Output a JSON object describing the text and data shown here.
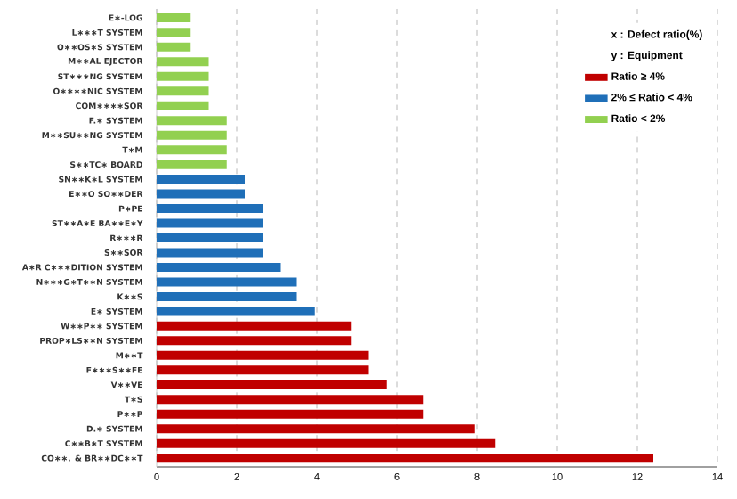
{
  "chart_data": {
    "type": "bar",
    "orientation": "horizontal",
    "grid": "x",
    "legend": "top right",
    "annotations": [
      "x : Defect ratio(%)",
      "y : Equipment"
    ],
    "categories": [
      "E∗-LOG",
      "L∗∗∗T SYSTEM",
      "O∗∗OS∗S SYSTEM",
      "M∗∗AL EJECTOR",
      "ST∗∗∗NG SYSTEM",
      "O∗∗∗∗NIC SYSTEM",
      "COM∗∗∗∗SOR",
      "F.∗ SYSTEM",
      "M∗∗SU∗∗NG SYSTEM",
      "T∗M",
      "S∗∗TC∗ BOARD",
      "SN∗∗K∗L SYSTEM",
      "E∗∗O SO∗∗DER",
      "P∗PE",
      "ST∗∗A∗E BA∗∗E∗Y",
      "R∗∗∗R",
      "S∗∗SOR",
      "A∗R C∗∗∗DITION SYSTEM",
      "N∗∗∗G∗T∗∗N SYSTEM",
      "K∗∗S",
      "E∗ SYSTEM",
      "W∗∗P∗∗ SYSTEM",
      "PROP∗LS∗∗N SYSTEM",
      "M∗∗T",
      "F∗∗∗S∗∗FE",
      "V∗∗VE",
      "T∗S",
      "P∗∗P",
      "D.∗ SYSTEM",
      "C∗∗B∗T SYSTEM",
      "CO∗∗. & BR∗∗DC∗∗T"
    ],
    "series": [
      {
        "name": "Ratio ≥ 4%",
        "color": "#c00000",
        "values": [
          null,
          null,
          null,
          null,
          null,
          null,
          null,
          null,
          null,
          null,
          null,
          null,
          null,
          null,
          null,
          null,
          null,
          null,
          null,
          null,
          null,
          4.85,
          4.85,
          5.3,
          5.3,
          5.75,
          6.65,
          6.65,
          7.95,
          8.45,
          12.4
        ]
      },
      {
        "name": "2% ≤ Ratio < 4%",
        "color": "#1f6fb8",
        "values": [
          null,
          null,
          null,
          null,
          null,
          null,
          null,
          null,
          null,
          null,
          null,
          2.2,
          2.2,
          2.65,
          2.65,
          2.65,
          2.65,
          3.1,
          3.5,
          3.5,
          3.95,
          null,
          null,
          null,
          null,
          null,
          null,
          null,
          null,
          null,
          null
        ]
      },
      {
        "name": "Ratio < 2%",
        "color": "#92d050",
        "values": [
          0.85,
          0.85,
          0.85,
          1.3,
          1.3,
          1.3,
          1.3,
          1.75,
          1.75,
          1.75,
          1.75,
          null,
          null,
          null,
          null,
          null,
          null,
          null,
          null,
          null,
          null,
          null,
          null,
          null,
          null,
          null,
          null,
          null,
          null,
          null,
          null
        ]
      }
    ],
    "xlim": [
      0,
      14
    ],
    "xticks": [
      0,
      2,
      4,
      6,
      8,
      10,
      12,
      14
    ]
  }
}
